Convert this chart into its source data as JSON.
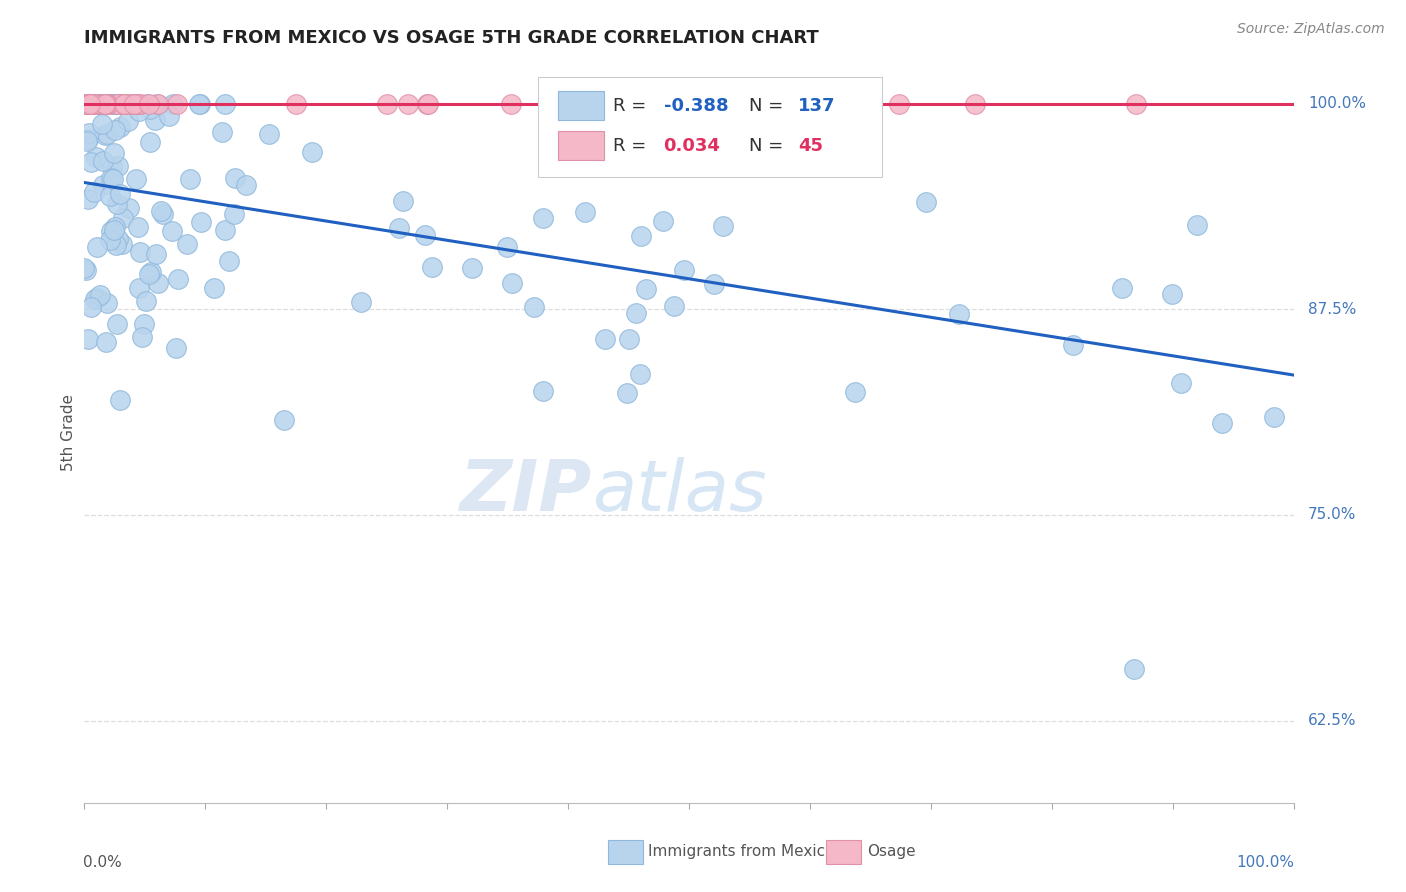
{
  "title": "IMMIGRANTS FROM MEXICO VS OSAGE 5TH GRADE CORRELATION CHART",
  "source_text": "Source: ZipAtlas.com",
  "ylabel": "5th Grade",
  "ylabel_right_labels": [
    "100.0%",
    "87.5%",
    "75.0%",
    "62.5%"
  ],
  "ylabel_right_values": [
    1.0,
    0.875,
    0.75,
    0.625
  ],
  "blue_R": -0.388,
  "blue_N": 137,
  "pink_R": 0.034,
  "pink_N": 45,
  "blue_color": "#b8d4ed",
  "blue_edge_color": "#90b8dc",
  "blue_line_color": "#2060c0",
  "pink_color": "#f5b8c8",
  "pink_edge_color": "#e090a8",
  "pink_line_color": "#e03060",
  "xmin": 0.0,
  "xmax": 1.0,
  "ymin": 0.575,
  "ymax": 1.025,
  "blue_trend_y0": 0.952,
  "blue_trend_y1": 0.835,
  "pink_trend_y0": 1.0,
  "pink_trend_y1": 1.0,
  "grid_color": "#dddddd",
  "watermark_zip_color": "#c5d8ec",
  "watermark_atlas_color": "#a8c8e8"
}
